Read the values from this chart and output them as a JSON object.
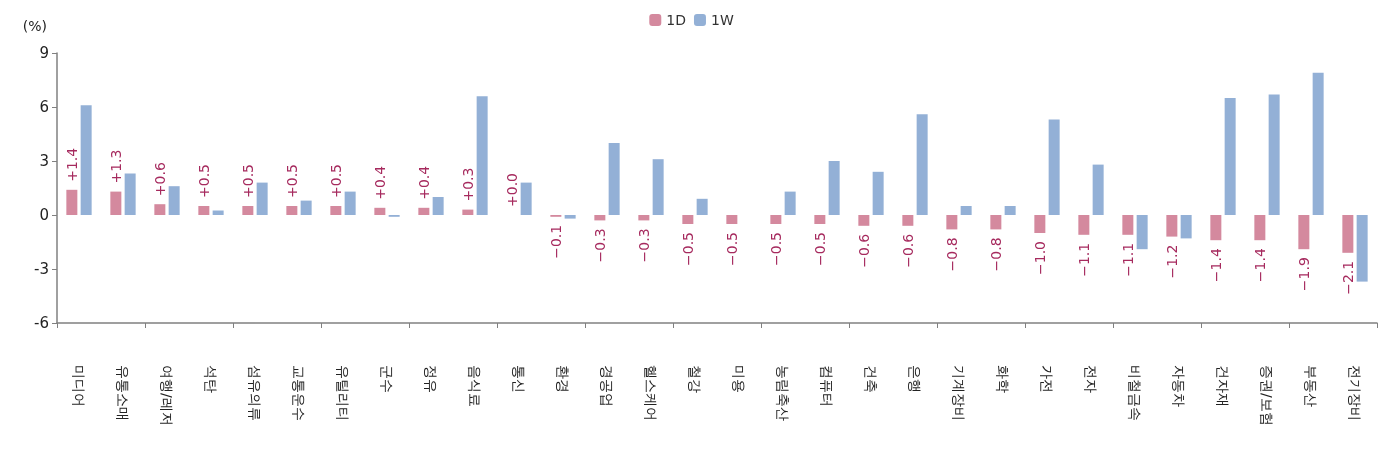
{
  "chart_data": {
    "type": "bar",
    "ylabel": "(%)",
    "categories": [
      "미디어",
      "유통소매",
      "여행/레저",
      "석탄",
      "섬유의류",
      "교통운수",
      "유틸리티",
      "군수",
      "정유",
      "음식료",
      "통신",
      "환경",
      "경공업",
      "헬스케어",
      "철강",
      "미용",
      "농림축산",
      "컴퓨터",
      "건축",
      "은행",
      "기계장비",
      "화학",
      "가전",
      "전자",
      "비철금속",
      "자동차",
      "건자재",
      "증권/보험",
      "부동산",
      "전기장비"
    ],
    "series": [
      {
        "name": "1D",
        "color": "#d4899e",
        "values": [
          1.4,
          1.3,
          0.6,
          0.5,
          0.5,
          0.5,
          0.5,
          0.4,
          0.4,
          0.3,
          0.0,
          -0.1,
          -0.3,
          -0.3,
          -0.5,
          -0.5,
          -0.5,
          -0.5,
          -0.6,
          -0.6,
          -0.8,
          -0.8,
          -1.0,
          -1.1,
          -1.1,
          -1.2,
          -1.4,
          -1.4,
          -1.9,
          -2.1
        ],
        "value_labels": [
          "+1.4",
          "+1.3",
          "+0.6",
          "+0.5",
          "+0.5",
          "+0.5",
          "+0.5",
          "+0.4",
          "+0.4",
          "+0.3",
          "+0.0",
          "−0.1",
          "−0.3",
          "−0.3",
          "−0.5",
          "−0.5",
          "−0.5",
          "−0.5",
          "−0.6",
          "−0.6",
          "−0.8",
          "−0.8",
          "−1.0",
          "−1.1",
          "−1.1",
          "−1.2",
          "−1.4",
          "−1.4",
          "−1.9",
          "−2.1"
        ]
      },
      {
        "name": "1W",
        "color": "#93b0d6",
        "values": [
          6.1,
          2.3,
          1.6,
          0.25,
          1.8,
          0.8,
          1.3,
          -0.1,
          1.0,
          6.6,
          1.8,
          -0.2,
          4.0,
          3.1,
          0.9,
          0.0,
          1.3,
          3.0,
          2.4,
          5.6,
          0.5,
          0.5,
          5.3,
          2.8,
          -1.9,
          -1.3,
          6.5,
          6.7,
          7.9,
          -3.7
        ]
      }
    ],
    "ylim": [
      -6,
      9
    ],
    "yticks": [
      -6,
      -3,
      0,
      3,
      6,
      9
    ],
    "grid": false,
    "legend": "top"
  }
}
